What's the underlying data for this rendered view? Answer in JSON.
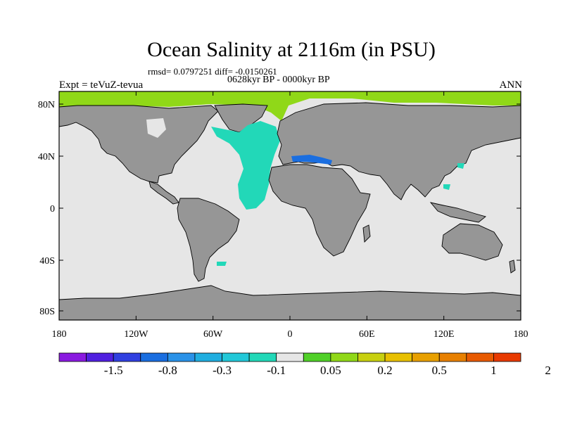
{
  "header": {
    "title": "Ocean Salinity at 2116m (in PSU)",
    "stats": "rmsd= 0.0797251 diff= -0.0150261",
    "period": "0628kyr BP - 0000kyr BP",
    "experiment": "Expt = teVuZ-tevua",
    "season": "ANN"
  },
  "axes": {
    "x_ticks": [
      "180",
      "120W",
      "60W",
      "0",
      "60E",
      "120E",
      "180"
    ],
    "y_ticks": [
      "80N",
      "40N",
      "0",
      "40S",
      "80S"
    ]
  },
  "colorbar": {
    "labels": [
      "-1.5",
      "-0.8",
      "-0.3",
      "-0.1",
      "0.05",
      "0.2",
      "0.5",
      "1",
      "2"
    ],
    "colors": [
      "#8a1ae0",
      "#5020e0",
      "#3040e0",
      "#1a6ee0",
      "#2a92e8",
      "#20aee0",
      "#22c8d8",
      "#22d8b8",
      "#e6e6e6",
      "#50d028",
      "#90d818",
      "#c8d010",
      "#e8c000",
      "#e8a000",
      "#e88000",
      "#e85a00",
      "#e83a00"
    ]
  },
  "map_colors": {
    "land": "#969696",
    "ocean_neutral": "#e6e6e6",
    "fresher": "#22d8b8",
    "much_fresher": "#1a6ee0",
    "saltier": "#90d818",
    "coast": "#000000"
  }
}
